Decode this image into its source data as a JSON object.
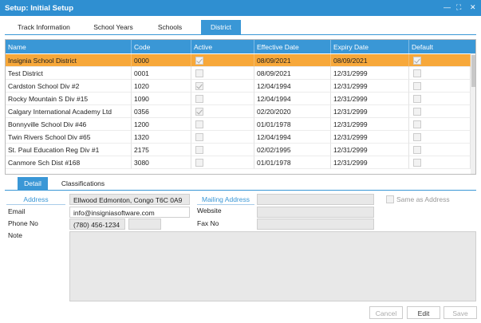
{
  "window": {
    "title": "Setup: Initial Setup"
  },
  "tabs": [
    "Track Information",
    "School Years",
    "Schools",
    "District"
  ],
  "grid": {
    "columns": [
      "Name",
      "Code",
      "Active",
      "Effective Date",
      "Expiry Date",
      "Default"
    ],
    "rows": [
      {
        "name": "Insignia School District",
        "code": "0000",
        "active": true,
        "effective_date": "08/09/2021",
        "expiry_date": "08/09/2021",
        "default": true
      },
      {
        "name": "Test District",
        "code": "0001",
        "active": false,
        "effective_date": "08/09/2021",
        "expiry_date": "12/31/2999",
        "default": false
      },
      {
        "name": "Cardston School Div #2",
        "code": "1020",
        "active": true,
        "effective_date": "12/04/1994",
        "expiry_date": "12/31/2999",
        "default": false
      },
      {
        "name": "Rocky Mountain S Div #15",
        "code": "1090",
        "active": false,
        "effective_date": "12/04/1994",
        "expiry_date": "12/31/2999",
        "default": false
      },
      {
        "name": "Calgary International Academy Ltd",
        "code": "0356",
        "active": true,
        "effective_date": "02/20/2020",
        "expiry_date": "12/31/2999",
        "default": false
      },
      {
        "name": "Bonnyville School Div #46",
        "code": "1200",
        "active": false,
        "effective_date": "01/01/1978",
        "expiry_date": "12/31/2999",
        "default": false
      },
      {
        "name": "Twin Rivers School Div #65",
        "code": "1320",
        "active": false,
        "effective_date": "12/04/1994",
        "expiry_date": "12/31/2999",
        "default": false
      },
      {
        "name": "St. Paul Education Reg Div #1",
        "code": "2175",
        "active": false,
        "effective_date": "02/02/1995",
        "expiry_date": "12/31/2999",
        "default": false
      },
      {
        "name": "Canmore Sch Dist #168",
        "code": "3080",
        "active": false,
        "effective_date": "01/01/1978",
        "expiry_date": "12/31/2999",
        "default": false
      }
    ]
  },
  "detail_tabs": [
    "Detail",
    "Classifications"
  ],
  "form": {
    "address_label": "Address",
    "address": "Ellwood Edmonton, Congo  T6C 0A9",
    "mailing_address_label": "Mailing Address",
    "same_as_address": "Same as Address",
    "email_label": "Email",
    "email": "info@insigniasoftware.com",
    "website_label": "Website",
    "phone_label": "Phone No",
    "phone": "(780) 456-1234",
    "fax_label": "Fax No",
    "note_label": "Note"
  },
  "buttons": [
    "Cancel",
    "Edit",
    "Save"
  ]
}
